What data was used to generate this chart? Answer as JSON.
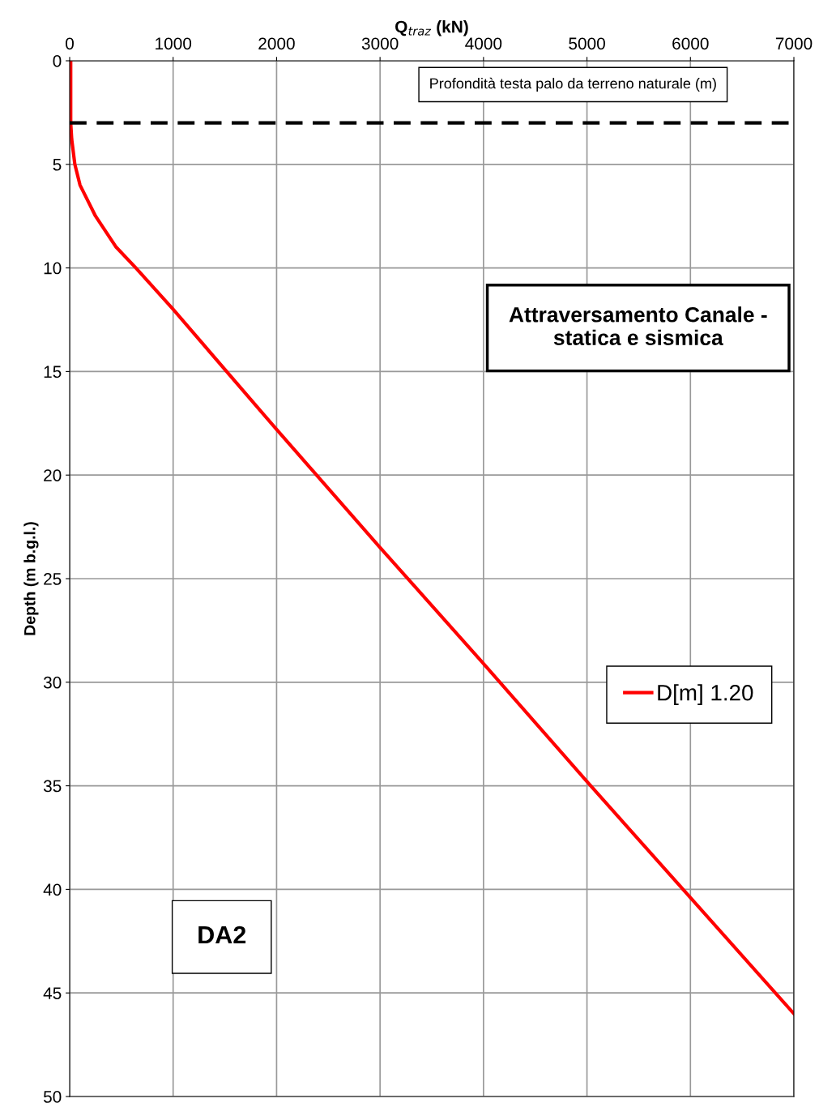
{
  "chart_data": {
    "type": "line",
    "xlabel": "Q$_{traz}$ (kN)",
    "ylabel": "Depth (m b.g.l.)",
    "xlim": [
      0,
      7000
    ],
    "xticks": [
      0,
      1000,
      2000,
      3000,
      4000,
      5000,
      6000,
      7000
    ],
    "ylim": [
      50,
      0
    ],
    "yticks": [
      0,
      5,
      10,
      15,
      20,
      25,
      30,
      35,
      40,
      45,
      50
    ],
    "grid": true,
    "legend": "right",
    "line_style": "solid",
    "marker": "none",
    "series": [
      {
        "name": "D[m] 1.20",
        "color": "#ff0000",
        "x": [
          10,
          10,
          20,
          50,
          100,
          250,
          450,
          640,
          820,
          1000,
          2000,
          3000,
          4000,
          5000,
          6000,
          7000
        ],
        "values": [
          0,
          3,
          3.8,
          5,
          6,
          7.5,
          9,
          10,
          11,
          12,
          17.8,
          23.5,
          29.1,
          34.8,
          40.4,
          46
        ]
      }
    ],
    "ref_lines": [
      {
        "axis": "y",
        "value": 3,
        "label": "Profondità testa palo da terreno naturale (m)",
        "color": "#000000",
        "line_style": "dashed"
      }
    ],
    "annotations": [
      "Attraversamento Canale -\nstatica e sismica",
      "DA2"
    ]
  }
}
